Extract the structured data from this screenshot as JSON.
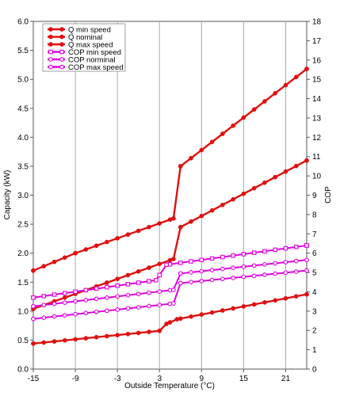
{
  "chart_data": {
    "type": "line",
    "xlabel": "Outside Temperature (°C)",
    "ylabel": "Capacity (kW)",
    "y2label": "COP",
    "xlim": [
      -15,
      24
    ],
    "ylim": [
      0,
      6
    ],
    "y2lim": [
      0,
      18
    ],
    "xticks": [
      "-15",
      "-9",
      "-3",
      "3",
      "9",
      "15",
      "21"
    ],
    "xtick_values": [
      -15,
      -9,
      -3,
      3,
      9,
      15,
      21
    ],
    "yticks": [
      "0.0",
      "0.5",
      "1.0",
      "1.5",
      "2.0",
      "2.5",
      "3.0",
      "3.5",
      "4.0",
      "4.5",
      "5.0",
      "5.5",
      "6.0"
    ],
    "y2ticks": [
      "0",
      "1",
      "2",
      "3",
      "4",
      "5",
      "6",
      "7",
      "8",
      "9",
      "10",
      "11",
      "12",
      "13",
      "14",
      "15",
      "16",
      "17",
      "18"
    ],
    "grid": "vertical",
    "legend_position": "top-left",
    "series": [
      {
        "name": "Q min speed",
        "axis": "left",
        "color": "#e01010",
        "marker": "filled-circle",
        "points": [
          [
            -15,
            0.44
          ],
          [
            3,
            0.66
          ],
          [
            4,
            0.78
          ],
          [
            5.5,
            0.86
          ],
          [
            24,
            1.29
          ]
        ]
      },
      {
        "name": "Q nominal",
        "axis": "left",
        "color": "#e01010",
        "marker": "filled-circle",
        "points": [
          [
            -15,
            1.04
          ],
          [
            5,
            1.9
          ],
          [
            6,
            2.45
          ],
          [
            24,
            3.6
          ]
        ]
      },
      {
        "name": "Q max speed",
        "axis": "left",
        "color": "#e01010",
        "marker": "filled-circle",
        "points": [
          [
            -15,
            1.7
          ],
          [
            -9,
            2.0
          ],
          [
            5,
            2.6
          ],
          [
            6,
            3.5
          ],
          [
            24,
            5.18
          ]
        ]
      },
      {
        "name": "COP min speed",
        "axis": "right",
        "color": "#e000e0",
        "marker": "open-square",
        "points": [
          [
            -15,
            3.7
          ],
          [
            2.5,
            4.6
          ],
          [
            4,
            5.4
          ],
          [
            24,
            6.4
          ]
        ]
      },
      {
        "name": "COP norminal",
        "axis": "right",
        "color": "#e000e0",
        "marker": "open-circle",
        "points": [
          [
            -15,
            3.25
          ],
          [
            5,
            4.1
          ],
          [
            6,
            4.95
          ],
          [
            24,
            5.65
          ]
        ]
      },
      {
        "name": "COP max speed",
        "axis": "right",
        "color": "#e000e0",
        "marker": "open-circle",
        "points": [
          [
            -15,
            2.6
          ],
          [
            5,
            3.4
          ],
          [
            6,
            4.45
          ],
          [
            24,
            5.1
          ]
        ]
      }
    ]
  }
}
